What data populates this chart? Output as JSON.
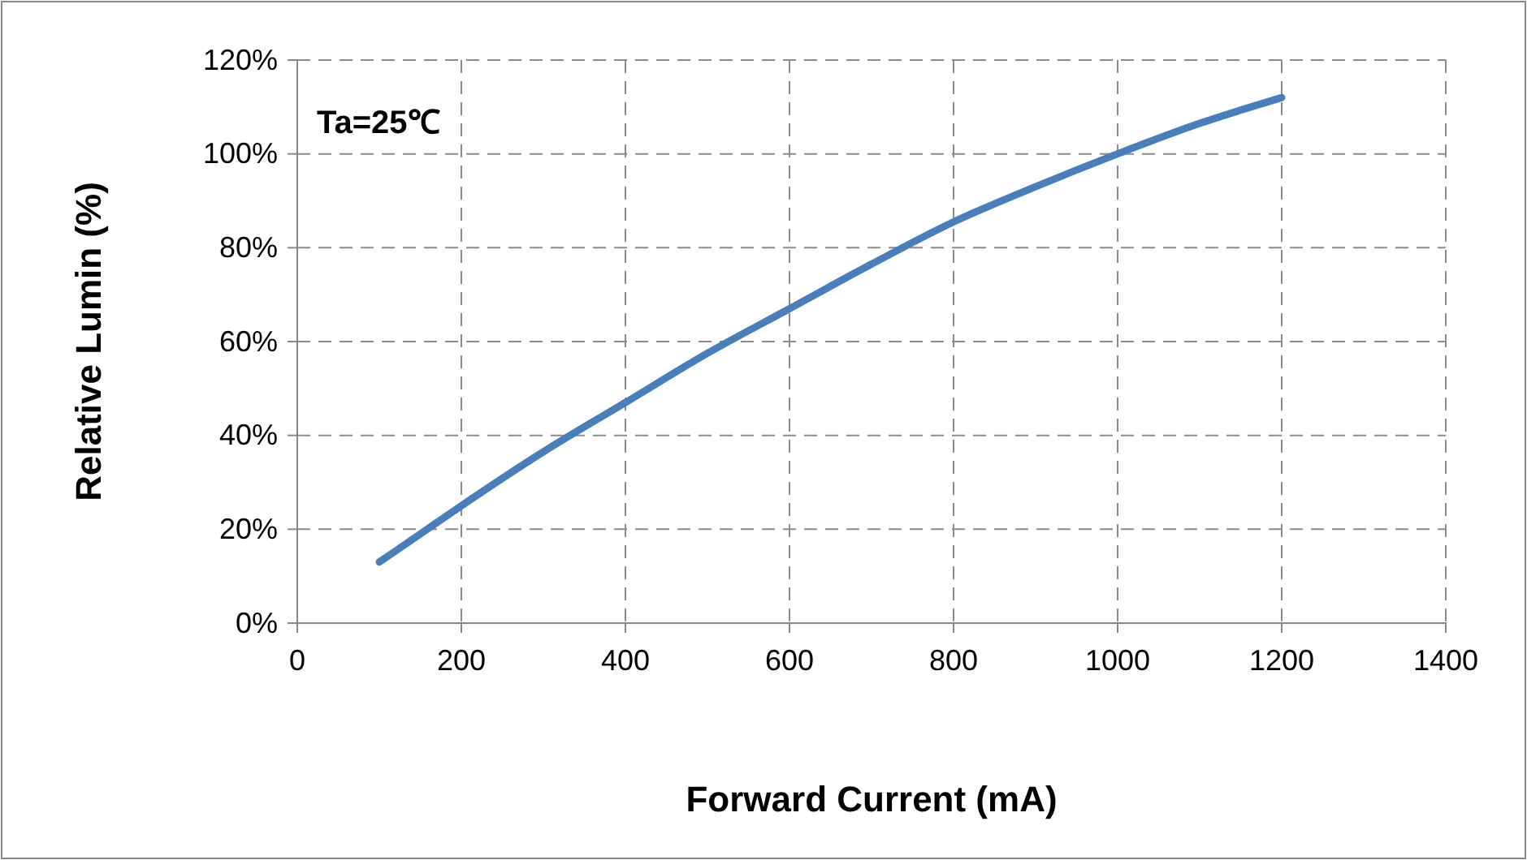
{
  "chart_data": {
    "type": "line",
    "xlabel": "Forward Current  (mA)",
    "ylabel": "Relative Lumin (%)",
    "annotations": [
      "Ta=25℃"
    ],
    "series": [
      {
        "color": "#4a7ebb",
        "x": [
          100,
          150,
          200,
          300,
          400,
          500,
          600,
          700,
          800,
          900,
          1000,
          1100,
          1200
        ],
        "values": [
          13,
          19,
          25,
          36.5,
          47,
          57.5,
          67,
          76.5,
          85.5,
          93,
          100,
          106.5,
          112
        ]
      }
    ],
    "xlim": [
      0,
      1400
    ],
    "xticks": [
      0,
      200,
      400,
      600,
      800,
      1000,
      1200,
      1400
    ],
    "ylim": [
      0,
      120
    ],
    "yticks": [
      {
        "value": 0,
        "label": "0%"
      },
      {
        "value": 20,
        "label": "20%"
      },
      {
        "value": 40,
        "label": "40%"
      },
      {
        "value": 60,
        "label": "60%"
      },
      {
        "value": 80,
        "label": "80%"
      },
      {
        "value": 100,
        "label": "100%"
      },
      {
        "value": 120,
        "label": "120%"
      }
    ],
    "grid": true,
    "marker": "none",
    "line_style": "solid"
  }
}
